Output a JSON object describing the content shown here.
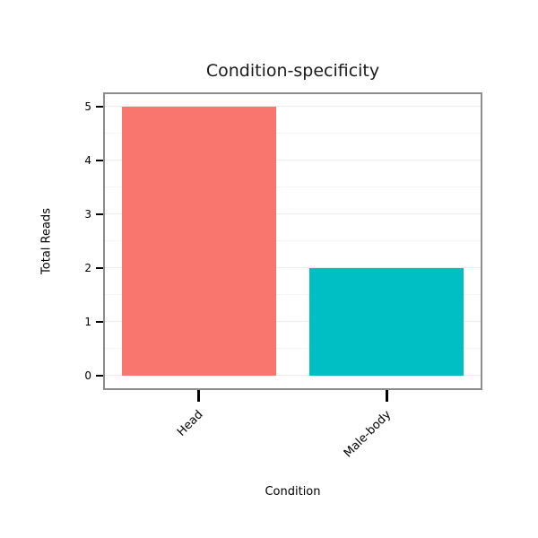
{
  "chart_data": {
    "type": "bar",
    "title": "Condition-specificity",
    "xlabel": "Condition",
    "ylabel": "Total Reads",
    "categories": [
      "Head",
      "Male-body"
    ],
    "values": [
      5,
      2
    ],
    "colors": [
      "#F8766D",
      "#00BFC4"
    ],
    "ylim": [
      0,
      5
    ],
    "yticks": [
      0,
      1,
      2,
      3,
      4,
      5
    ],
    "grid": true,
    "legend": "none",
    "panel_border_color": "#8c8c8c",
    "background_color": "#ffffff"
  }
}
